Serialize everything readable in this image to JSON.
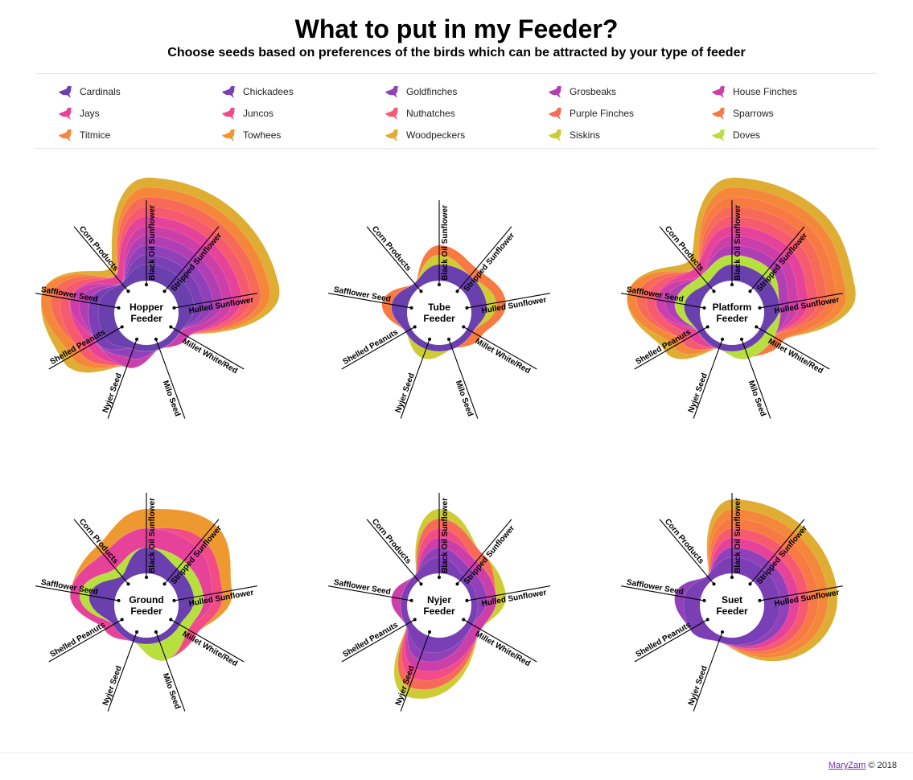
{
  "title": "What to put in my Feeder?",
  "subtitle": "Choose seeds based on preferences of the birds which can be attracted by your type of feeder",
  "legend": [
    {
      "name": "Cardinals",
      "color": "#6a3fae"
    },
    {
      "name": "Chickadees",
      "color": "#7a3fb5"
    },
    {
      "name": "Goldfinches",
      "color": "#9040b8"
    },
    {
      "name": "Grosbeaks",
      "color": "#b23eb3"
    },
    {
      "name": "House Finches",
      "color": "#cc3fa8"
    },
    {
      "name": "Jays",
      "color": "#e6429a"
    },
    {
      "name": "Juncos",
      "color": "#f24b85"
    },
    {
      "name": "Nuthatches",
      "color": "#f65a6e"
    },
    {
      "name": "Purple Finches",
      "color": "#f66a57"
    },
    {
      "name": "Sparrows",
      "color": "#f77a43"
    },
    {
      "name": "Titmice",
      "color": "#f5873a"
    },
    {
      "name": "Towhees",
      "color": "#ee9830"
    },
    {
      "name": "Woodpeckers",
      "color": "#dfad32"
    },
    {
      "name": "Siskins",
      "color": "#cdcc35"
    },
    {
      "name": "Doves",
      "color": "#b7e03e"
    }
  ],
  "chart_data": [
    {
      "type": "radar-stacked-area",
      "title": "Hopper Feeder",
      "title_lines": [
        "Hopper",
        "Feeder"
      ],
      "axes": [
        "Black Oil Sunflower",
        "Stripped Sunflower",
        "Hulled Sunflower",
        "Millet White/Red",
        "Milo Seed",
        "Nyjer Seed",
        "Shelled Peanuts",
        "Safflower Seed",
        "Corn Products"
      ],
      "series": [
        {
          "name": "Cardinals",
          "values": [
            1,
            1,
            1,
            0,
            0,
            0,
            1,
            1,
            0
          ]
        },
        {
          "name": "Chickadees",
          "values": [
            1,
            1,
            1,
            0,
            0,
            0,
            1,
            1,
            0
          ]
        },
        {
          "name": "Goldfinches",
          "values": [
            1,
            1,
            1,
            0,
            0,
            1,
            0,
            0,
            0
          ]
        },
        {
          "name": "Grosbeaks",
          "values": [
            1,
            1,
            1,
            0,
            0,
            0,
            0,
            1,
            0
          ]
        },
        {
          "name": "House Finches",
          "values": [
            1,
            1,
            1,
            1,
            0,
            1,
            0,
            1,
            0
          ]
        },
        {
          "name": "Jays",
          "values": [
            1,
            1,
            1,
            0,
            0,
            0,
            1,
            0,
            1
          ]
        },
        {
          "name": "Nuthatches",
          "values": [
            1,
            1,
            1,
            0,
            0,
            0,
            1,
            1,
            0
          ]
        },
        {
          "name": "Purple Finches",
          "values": [
            1,
            1,
            1,
            0,
            0,
            0,
            0,
            1,
            0
          ]
        },
        {
          "name": "Titmice",
          "values": [
            1,
            1,
            1,
            0,
            0,
            0,
            1,
            1,
            0
          ]
        },
        {
          "name": "Woodpeckers",
          "values": [
            1,
            1,
            1,
            0,
            0,
            0,
            1,
            0,
            1
          ]
        }
      ]
    },
    {
      "type": "radar-stacked-area",
      "title": "Tube Feeder",
      "title_lines": [
        "Tube",
        "Feeder"
      ],
      "axes": [
        "Black Oil Sunflower",
        "Stripped Sunflower",
        "Hulled Sunflower",
        "Millet White/Red",
        "Milo Seed",
        "Nyjer Seed",
        "Shelled Peanuts",
        "Safflower Seed",
        "Corn Products"
      ],
      "series": [
        {
          "name": "Cardinals",
          "values": [
            1,
            1,
            1,
            0,
            0,
            0,
            0,
            1,
            0
          ]
        },
        {
          "name": "Siskins",
          "values": [
            1,
            0,
            1,
            0,
            0,
            1,
            0,
            0,
            0
          ]
        },
        {
          "name": "Sparrows",
          "values": [
            1,
            1,
            1,
            1,
            0,
            0,
            0,
            1,
            0
          ]
        }
      ]
    },
    {
      "type": "radar-stacked-area",
      "title": "Platform Feeder",
      "title_lines": [
        "Platform",
        "Feeder"
      ],
      "axes": [
        "Black Oil Sunflower",
        "Stripped Sunflower",
        "Hulled Sunflower",
        "Millet White/Red",
        "Milo Seed",
        "Nyjer Seed",
        "Shelled Peanuts",
        "Safflower Seed",
        "Corn Products"
      ],
      "series": [
        {
          "name": "Cardinals",
          "values": [
            1,
            1,
            1,
            0,
            0,
            0,
            0,
            1,
            0
          ]
        },
        {
          "name": "Doves",
          "values": [
            1,
            1,
            0,
            1,
            1,
            0,
            0,
            1,
            1
          ]
        },
        {
          "name": "Grosbeaks",
          "values": [
            1,
            1,
            1,
            0,
            0,
            0,
            0,
            1,
            0
          ]
        },
        {
          "name": "House Finches",
          "values": [
            1,
            1,
            1,
            0,
            0,
            0,
            0,
            1,
            0
          ]
        },
        {
          "name": "Jays",
          "values": [
            1,
            1,
            1,
            0,
            0,
            0,
            1,
            0,
            1
          ]
        },
        {
          "name": "Nuthatches",
          "values": [
            1,
            1,
            1,
            0,
            0,
            0,
            1,
            1,
            0
          ]
        },
        {
          "name": "Purple Finches",
          "values": [
            1,
            1,
            1,
            0,
            0,
            0,
            0,
            1,
            0
          ]
        },
        {
          "name": "Sparrows",
          "values": [
            1,
            1,
            1,
            1,
            0,
            0,
            0,
            0,
            0
          ]
        },
        {
          "name": "Titmice",
          "values": [
            1,
            1,
            1,
            0,
            0,
            0,
            1,
            1,
            0
          ]
        },
        {
          "name": "Woodpeckers",
          "values": [
            1,
            1,
            1,
            0,
            0,
            0,
            1,
            0,
            1
          ]
        }
      ]
    },
    {
      "type": "radar-stacked-area",
      "title": "Ground Feeder",
      "title_lines": [
        "Ground",
        "Feeder"
      ],
      "axes": [
        "Black Oil Sunflower",
        "Stripped Sunflower",
        "Hulled Sunflower",
        "Millet White/Red",
        "Milo Seed",
        "Nyjer Seed",
        "Shelled Peanuts",
        "Safflower Seed",
        "Corn Products"
      ],
      "series": [
        {
          "name": "Cardinals",
          "values": [
            2,
            1,
            1,
            0,
            0,
            0,
            0,
            2,
            0
          ]
        },
        {
          "name": "Doves",
          "values": [
            0,
            1,
            1,
            1,
            2,
            0,
            0,
            1,
            1
          ]
        },
        {
          "name": "Jays",
          "values": [
            2,
            2,
            1,
            0,
            0,
            0,
            1,
            1,
            2
          ]
        },
        {
          "name": "Juncos",
          "values": [
            0,
            1,
            1,
            1,
            0,
            0,
            0,
            0,
            0
          ]
        },
        {
          "name": "Towhees",
          "values": [
            2,
            2,
            1,
            0,
            0,
            0,
            0,
            0,
            1
          ]
        }
      ]
    },
    {
      "type": "radar-stacked-area",
      "title": "Nyjer Feeder",
      "title_lines": [
        "Nyjer",
        "Feeder"
      ],
      "axes": [
        "Black Oil Sunflower",
        "Stripped Sunflower",
        "Hulled Sunflower",
        "Millet White/Red",
        "Nyjer Seed",
        "Shelled Peanuts",
        "Safflower Seed",
        "Corn Products"
      ],
      "series": [
        {
          "name": "Chickadees",
          "values": [
            1,
            0,
            0,
            0,
            1,
            0,
            0,
            0
          ]
        },
        {
          "name": "Goldfinches",
          "values": [
            1,
            1,
            1,
            0,
            1,
            0,
            0,
            0
          ]
        },
        {
          "name": "House Finches",
          "values": [
            1,
            1,
            1,
            1,
            1,
            0,
            1,
            0
          ]
        },
        {
          "name": "Juncos",
          "values": [
            1,
            0,
            0,
            0,
            1,
            0,
            0,
            0
          ]
        },
        {
          "name": "Purple Finches",
          "values": [
            1,
            1,
            0,
            0,
            1,
            0,
            0,
            0
          ]
        },
        {
          "name": "Siskins",
          "values": [
            1,
            0,
            1,
            0,
            1,
            0,
            0,
            0
          ]
        }
      ]
    },
    {
      "type": "radar-stacked-area",
      "title": "Suet Feeder",
      "title_lines": [
        "Suet",
        "Feeder"
      ],
      "axes": [
        "Black Oil Sunflower",
        "Stripped Sunflower",
        "Hulled Sunflower",
        "Nyjer Seed",
        "Shelled Peanuts",
        "Safflower Seed",
        "Corn Products"
      ],
      "series": [
        {
          "name": "Chickadees",
          "values": [
            1,
            1,
            1,
            0,
            1,
            1,
            0
          ]
        },
        {
          "name": "Goldfinches",
          "values": [
            1,
            1,
            1,
            0,
            0,
            1,
            0
          ]
        },
        {
          "name": "Jays",
          "values": [
            1,
            1,
            1,
            0,
            0,
            0,
            0
          ]
        },
        {
          "name": "Nuthatches",
          "values": [
            1,
            1,
            1,
            0,
            0,
            0,
            0
          ]
        },
        {
          "name": "Sparrows",
          "values": [
            1,
            1,
            1,
            0,
            0,
            0,
            0
          ]
        },
        {
          "name": "Titmice",
          "values": [
            1,
            1,
            1,
            0,
            0,
            0,
            0
          ]
        },
        {
          "name": "Woodpeckers",
          "values": [
            1,
            1,
            1,
            0,
            0,
            0,
            0
          ]
        }
      ]
    }
  ],
  "footer": {
    "author": "MaryZam",
    "copyright": "© 2018"
  }
}
